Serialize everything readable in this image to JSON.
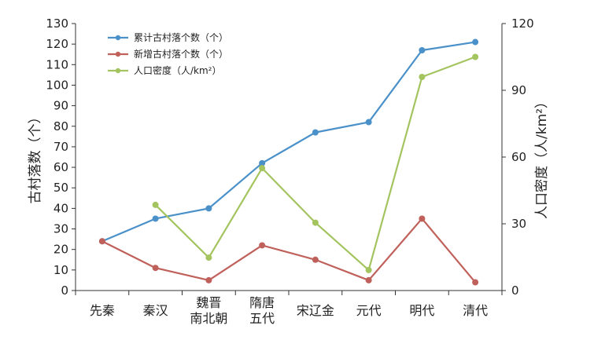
{
  "chart_data": {
    "type": "line",
    "categories": [
      "先秦",
      "秦汉",
      "魏晋南北朝",
      "隋唐五代",
      "宋辽金",
      "元代",
      "明代",
      "清代"
    ],
    "category_lines": [
      [
        "先秦"
      ],
      [
        "秦汉"
      ],
      [
        "魏晋",
        "南北朝"
      ],
      [
        "隋唐",
        "五代"
      ],
      [
        "宋辽金"
      ],
      [
        "元代"
      ],
      [
        "明代"
      ],
      [
        "清代"
      ]
    ],
    "ylabel": "古村落数（个）",
    "y2label": "人口密度（人/km²）",
    "ylim": [
      0,
      130
    ],
    "y_ticks": [
      0,
      10,
      20,
      30,
      40,
      50,
      60,
      70,
      80,
      90,
      100,
      110,
      120,
      130
    ],
    "y2lim": [
      0,
      120
    ],
    "y2_ticks": [
      0,
      30,
      60,
      90,
      120
    ],
    "legend_position": "top-left",
    "grid": false,
    "series": [
      {
        "name": "累计古村落个数（个）",
        "axis": "left",
        "color": "#4a90c9",
        "values": [
          24,
          35,
          40,
          62,
          77,
          82,
          117,
          121
        ]
      },
      {
        "name": "新增古村落个数（个）",
        "axis": "left",
        "color": "#c0605a",
        "values": [
          24,
          11,
          5,
          22,
          15,
          5,
          35,
          4
        ]
      },
      {
        "name": "人口密度（人/km²）",
        "axis": "right",
        "color": "#a3c45f",
        "values": [
          null,
          38.5,
          14.8,
          55,
          30.5,
          9.2,
          96,
          105
        ]
      }
    ]
  }
}
